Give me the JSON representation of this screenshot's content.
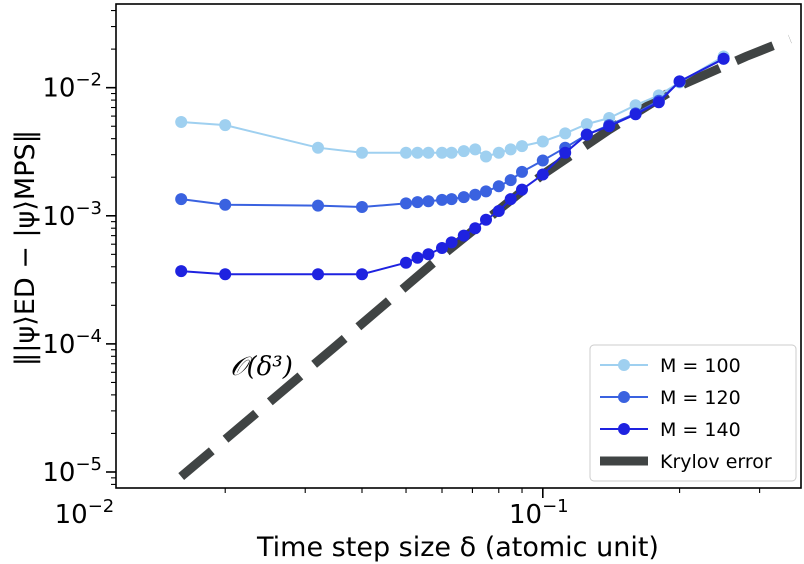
{
  "chart_data": {
    "type": "line",
    "xscale": "log",
    "yscale": "log",
    "xlim": [
      0.0115,
      0.37
    ],
    "ylim": [
      7.5e-06,
      0.045
    ],
    "xlabel": "Time step size δ (atomic unit)",
    "ylabel": "‖|ψ⟩ED − |ψ⟩MPS‖",
    "xticks": [
      {
        "value": 0.01,
        "mantissa": "10",
        "exp": "−2"
      },
      {
        "value": 0.1,
        "mantissa": "10",
        "exp": "−1"
      }
    ],
    "yticks": [
      {
        "value": 1e-05,
        "mantissa": "10",
        "exp": "−5"
      },
      {
        "value": 0.0001,
        "mantissa": "10",
        "exp": "−4"
      },
      {
        "value": 0.001,
        "mantissa": "10",
        "exp": "−3"
      },
      {
        "value": 0.01,
        "mantissa": "10",
        "exp": "−2"
      }
    ],
    "legend_position": "lower-right",
    "series": [
      {
        "name": "M = 100",
        "color": "#9fd0f0",
        "marker": "circle",
        "x": [
          0.016,
          0.02,
          0.032,
          0.04,
          0.05,
          0.053,
          0.056,
          0.06,
          0.063,
          0.067,
          0.071,
          0.075,
          0.08,
          0.085,
          0.09,
          0.1,
          0.112,
          0.125,
          0.14,
          0.16,
          0.18,
          0.2,
          0.25
        ],
        "y": [
          0.0054,
          0.0051,
          0.0034,
          0.0031,
          0.0031,
          0.0031,
          0.0031,
          0.0031,
          0.0031,
          0.0032,
          0.0033,
          0.0029,
          0.0031,
          0.0033,
          0.0035,
          0.0038,
          0.0044,
          0.0052,
          0.0058,
          0.0073,
          0.0087,
          0.011,
          0.0175
        ]
      },
      {
        "name": "M = 120",
        "color": "#3a62e0",
        "marker": "circle",
        "x": [
          0.016,
          0.02,
          0.032,
          0.04,
          0.05,
          0.053,
          0.056,
          0.06,
          0.063,
          0.067,
          0.071,
          0.075,
          0.08,
          0.085,
          0.09,
          0.1,
          0.112,
          0.125,
          0.14,
          0.16,
          0.18,
          0.2,
          0.25
        ],
        "y": [
          0.00135,
          0.00122,
          0.0012,
          0.00117,
          0.00125,
          0.00128,
          0.0013,
          0.00133,
          0.00135,
          0.0014,
          0.00146,
          0.00155,
          0.0017,
          0.0019,
          0.0022,
          0.0027,
          0.0034,
          0.0043,
          0.0051,
          0.0063,
          0.0079,
          0.0112,
          0.0168
        ]
      },
      {
        "name": "M = 140",
        "color": "#1e22e0",
        "marker": "circle",
        "x": [
          0.016,
          0.02,
          0.032,
          0.04,
          0.05,
          0.053,
          0.056,
          0.06,
          0.063,
          0.067,
          0.071,
          0.075,
          0.08,
          0.085,
          0.09,
          0.1,
          0.112,
          0.125,
          0.14,
          0.16,
          0.18,
          0.2,
          0.25
        ],
        "y": [
          0.00037,
          0.00035,
          0.00035,
          0.00035,
          0.00043,
          0.00047,
          0.0005,
          0.00056,
          0.00062,
          0.0007,
          0.0008,
          0.00093,
          0.00109,
          0.00135,
          0.0016,
          0.0021,
          0.0031,
          0.0043,
          0.005,
          0.0062,
          0.0077,
          0.0112,
          0.0168
        ]
      },
      {
        "name": "Krylov error",
        "color": "#404444",
        "style": "dashed",
        "x": [
          0.016,
          0.035,
          0.06,
          0.1,
          0.14,
          0.2,
          0.28,
          0.35
        ],
        "y": [
          9.2e-06,
          9.6e-05,
          0.00049,
          0.0021,
          0.0047,
          0.0103,
          0.0175,
          0.024
        ]
      }
    ],
    "annotation": {
      "text": "𝒪(δ³)",
      "x": 0.0205,
      "y": 5.7e-05
    }
  }
}
